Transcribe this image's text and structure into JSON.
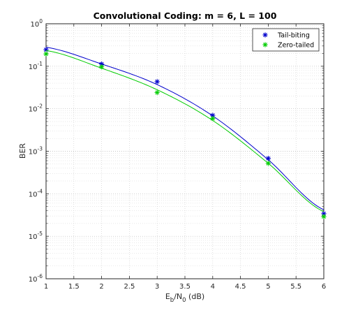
{
  "chart_data": {
    "type": "line",
    "title": "Convolutional Coding: m = 6, L = 100",
    "xlabel": {
      "main": "E",
      "sub1": "b",
      "mid": "/N",
      "sub2": "0",
      "tail": " (dB)"
    },
    "ylabel": "BER",
    "xlim": [
      1,
      6
    ],
    "ylim": [
      1e-06,
      1
    ],
    "yscale": "log",
    "grid": true,
    "minor_grid": true,
    "legend_position": "top-right",
    "x_ticks": [
      "1",
      "1.5",
      "2",
      "2.5",
      "3",
      "3.5",
      "4",
      "4.5",
      "5",
      "5.5",
      "6"
    ],
    "y_ticks": [
      {
        "base": "10",
        "exp": "0"
      },
      {
        "base": "10",
        "exp": "-1"
      },
      {
        "base": "10",
        "exp": "-2"
      },
      {
        "base": "10",
        "exp": "-3"
      },
      {
        "base": "10",
        "exp": "-4"
      },
      {
        "base": "10",
        "exp": "-5"
      },
      {
        "base": "10",
        "exp": "-6"
      }
    ],
    "series": [
      {
        "name": "Tail-biting",
        "color": "#0000cc",
        "marker": "asterisk",
        "x": [
          1,
          2,
          3,
          4,
          5,
          6
        ],
        "markers": [
          0.245,
          0.113,
          0.0434,
          0.007,
          0.00068,
          3.4e-05
        ],
        "curve": [
          0.28,
          0.113,
          0.037,
          0.0068,
          0.00063,
          4.2e-05
        ]
      },
      {
        "name": "Zero-tailed",
        "color": "#00cc00",
        "marker": "asterisk",
        "x": [
          1,
          2,
          3,
          4,
          5,
          6
        ],
        "markers": [
          0.195,
          0.097,
          0.0241,
          0.0059,
          0.00052,
          2.9e-05
        ],
        "curve": [
          0.235,
          0.09,
          0.028,
          0.0053,
          0.00052,
          3.8e-05
        ]
      }
    ]
  }
}
